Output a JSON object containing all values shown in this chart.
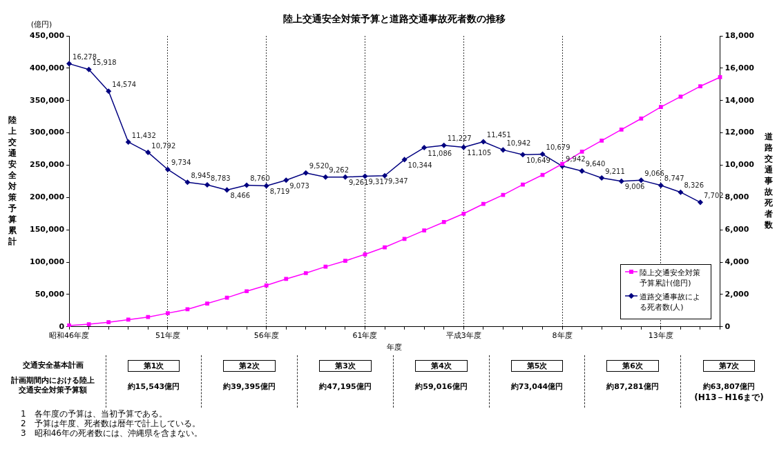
{
  "chart_data": {
    "type": "line",
    "title": "陸上交通安全対策予算と道路交通事故死者数の推移",
    "xlabel": "年度",
    "ylabel": "陸上交通安全対策予算累計",
    "y2label": "道路交通事故死者数",
    "categories": [
      "昭和46年度",
      null,
      null,
      null,
      null,
      "51年度",
      null,
      null,
      null,
      null,
      "56年度",
      null,
      null,
      null,
      null,
      "61年度",
      null,
      null,
      null,
      null,
      "平成3年度",
      null,
      null,
      null,
      null,
      "8年度",
      null,
      null,
      null,
      null,
      "13年度",
      null,
      null,
      null
    ],
    "series": [
      {
        "name": "陸上交通安全対策予算累計(億円)",
        "color": "#ff00ff",
        "marker": "square",
        "values": [
          2000,
          4000,
          7000,
          11000,
          15000,
          21000,
          27000,
          36000,
          45000,
          55000,
          64000,
          74000,
          83000,
          93000,
          102000,
          112000,
          123000,
          136000,
          149000,
          162000,
          175000,
          190000,
          204000,
          220000,
          235000,
          252000,
          271000,
          288000,
          305000,
          322000,
          340000,
          356000,
          372000,
          386000
        ]
      },
      {
        "name": "道路交通事故による死者数(人)",
        "color": "#000080",
        "marker": "diamond",
        "axis": "y2",
        "values": [
          16278,
          15918,
          14574,
          11432,
          10792,
          9734,
          8945,
          8783,
          8466,
          8760,
          8719,
          9073,
          9520,
          9262,
          9261,
          9317,
          9347,
          10344,
          11086,
          11227,
          11105,
          11451,
          10942,
          10649,
          10679,
          9942,
          9640,
          9211,
          9006,
          9066,
          8747,
          8326,
          7702,
          null
        ],
        "value_labels": [
          "16,278",
          "15,918",
          "14,574",
          "11,432",
          "10,792",
          "9,734",
          "8,945",
          "8,783",
          "8,466",
          "8,760",
          "8,719",
          "9,073",
          "9,520",
          "9,262",
          "9,261",
          "9,317",
          "9,347",
          "10,344",
          "11,086",
          "11,227",
          "11,105",
          "11,451",
          "10,942",
          "10,649",
          "10,679",
          "9,942",
          "9,640",
          "9,211",
          "9,006",
          "9,066",
          "8,747",
          "8,326",
          "7,702",
          null
        ]
      }
    ],
    "ylim": [
      0,
      450000
    ],
    "yticks": [
      0,
      {
        "value": 50000,
        "label": "50,000"
      },
      {
        "value": 100000,
        "label": "100,000"
      },
      {
        "value": 150000,
        "label": "150,000"
      },
      {
        "value": 200000,
        "label": "200,000"
      },
      {
        "value": 250000,
        "label": "250,000"
      },
      {
        "value": 300000,
        "label": "300,000"
      },
      {
        "value": 350000,
        "label": "350,000"
      },
      {
        "value": 400000,
        "label": "400,000"
      },
      {
        "value": 450000,
        "label": "450,000"
      }
    ],
    "y2lim": [
      0,
      18000
    ],
    "y2ticks": [
      0,
      {
        "value": 2000,
        "label": "2,000"
      },
      {
        "value": 4000,
        "label": "4,000"
      },
      {
        "value": 6000,
        "label": "6,000"
      },
      {
        "value": 8000,
        "label": "8,000"
      },
      {
        "value": 10000,
        "label": "10,000"
      },
      {
        "value": 12000,
        "label": "12,000"
      },
      {
        "value": 14000,
        "label": "14,000"
      },
      {
        "value": 16000,
        "label": "16,000"
      },
      {
        "value": 18000,
        "label": "18,000"
      }
    ],
    "grid": "x",
    "legend": "bottom right",
    "line_style": "solid",
    "annotations": [
      "(億円)",
      "交通安全基本計画",
      "計画期間内における陸上交通安全対策予算額",
      "第1次",
      "第2次",
      "第3次",
      "第4次",
      "第5次",
      "第6次",
      "第7次",
      "約15,543億円",
      "約39,395億円",
      "約47,195億円",
      "約59,016億円",
      "約73,044億円",
      "約87,281億円",
      "約63,807億円",
      "(H13－H16まで)",
      "1　各年度の予算は、当初予算である。",
      "2　予算は年度、死者数は暦年で計上している。",
      "3　昭和46年の死者数には、沖縄県を含まない。"
    ]
  }
}
